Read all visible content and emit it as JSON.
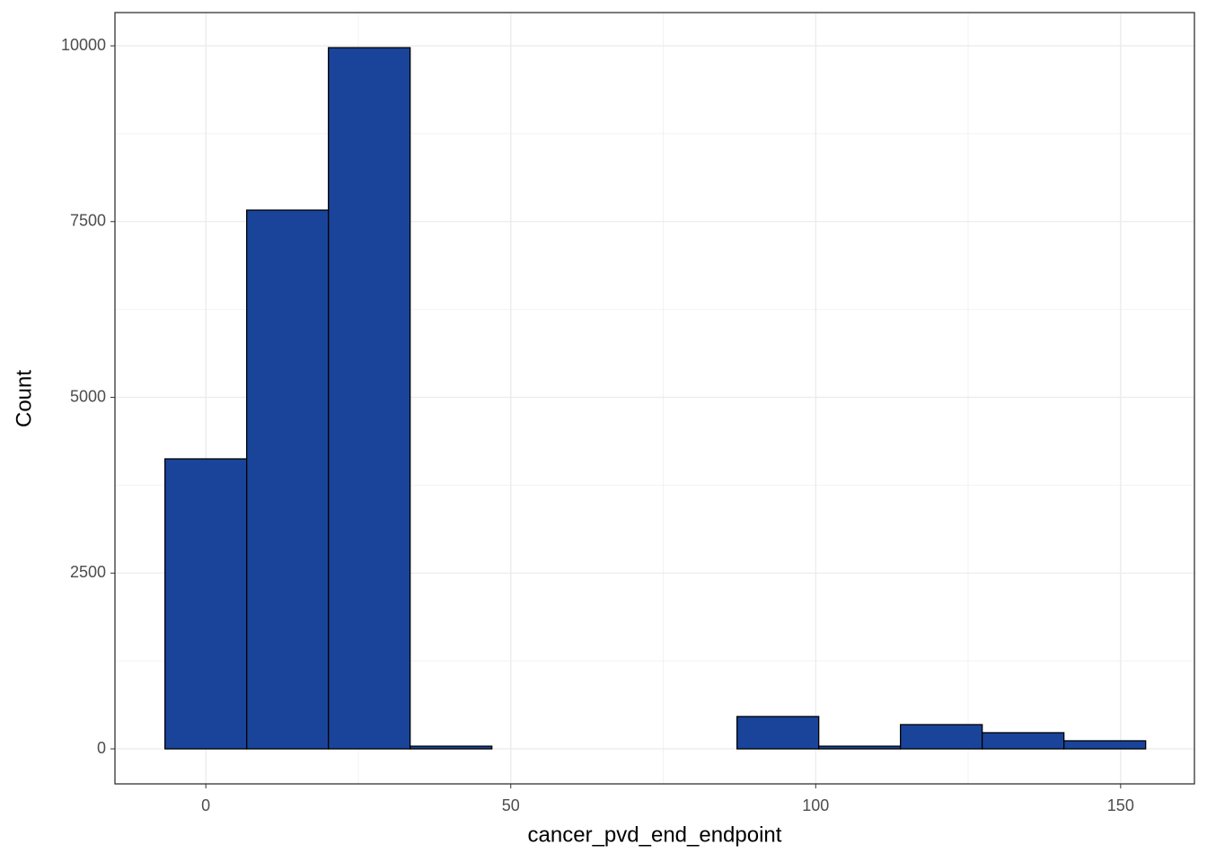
{
  "chart_data": {
    "type": "histogram",
    "x_label": "cancer_pvd_end_endpoint",
    "y_label": "Count",
    "bins": [
      -6.7,
      6.7,
      20.1,
      33.5,
      46.9,
      60.3,
      73.7,
      87.1,
      100.5,
      113.9,
      127.3,
      140.7,
      154.1
    ],
    "values": [
      4125,
      7663,
      9974,
      38,
      0,
      0,
      0,
      460,
      38,
      345,
      230,
      115
    ],
    "color": "#19449a",
    "xlim": [
      -14.9,
      162.1
    ],
    "xticks": [
      0,
      50,
      100,
      150
    ],
    "ylim": [
      -498,
      10473
    ],
    "yticks": [
      0,
      2500,
      5000,
      7500,
      10000
    ],
    "grid": true
  }
}
